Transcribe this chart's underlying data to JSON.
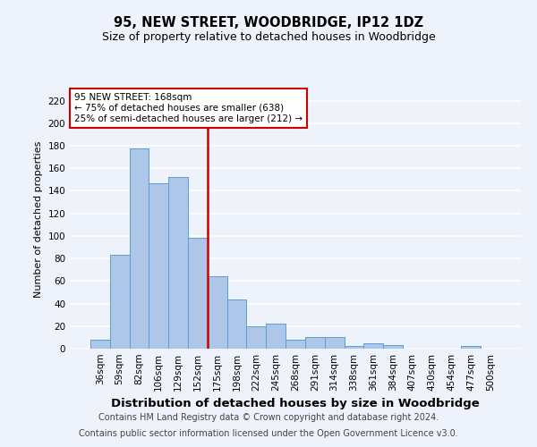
{
  "title1": "95, NEW STREET, WOODBRIDGE, IP12 1DZ",
  "title2": "Size of property relative to detached houses in Woodbridge",
  "xlabel": "Distribution of detached houses by size in Woodbridge",
  "ylabel": "Number of detached properties",
  "categories": [
    "36sqm",
    "59sqm",
    "82sqm",
    "106sqm",
    "129sqm",
    "152sqm",
    "175sqm",
    "198sqm",
    "222sqm",
    "245sqm",
    "268sqm",
    "291sqm",
    "314sqm",
    "338sqm",
    "361sqm",
    "384sqm",
    "407sqm",
    "430sqm",
    "454sqm",
    "477sqm",
    "500sqm"
  ],
  "values": [
    8,
    83,
    178,
    147,
    152,
    98,
    64,
    44,
    20,
    22,
    8,
    10,
    10,
    2,
    5,
    3,
    0,
    0,
    0,
    2,
    0
  ],
  "bar_color": "#aec6e8",
  "bar_edge_color": "#5a9fd4",
  "vline_color": "#cc0000",
  "annotation_text": "95 NEW STREET: 168sqm\n← 75% of detached houses are smaller (638)\n25% of semi-detached houses are larger (212) →",
  "annotation_box_color": "#ffffff",
  "annotation_box_edge_color": "#cc0000",
  "ylim": [
    0,
    230
  ],
  "yticks": [
    0,
    20,
    40,
    60,
    80,
    100,
    120,
    140,
    160,
    180,
    200,
    220
  ],
  "footer1": "Contains HM Land Registry data © Crown copyright and database right 2024.",
  "footer2": "Contains public sector information licensed under the Open Government Licence v3.0.",
  "bg_color": "#eef2fa",
  "grid_color": "#ffffff",
  "title1_fontsize": 10.5,
  "title2_fontsize": 9,
  "xlabel_fontsize": 9.5,
  "ylabel_fontsize": 8,
  "tick_fontsize": 7.5,
  "annotation_fontsize": 7.5,
  "footer_fontsize": 7
}
